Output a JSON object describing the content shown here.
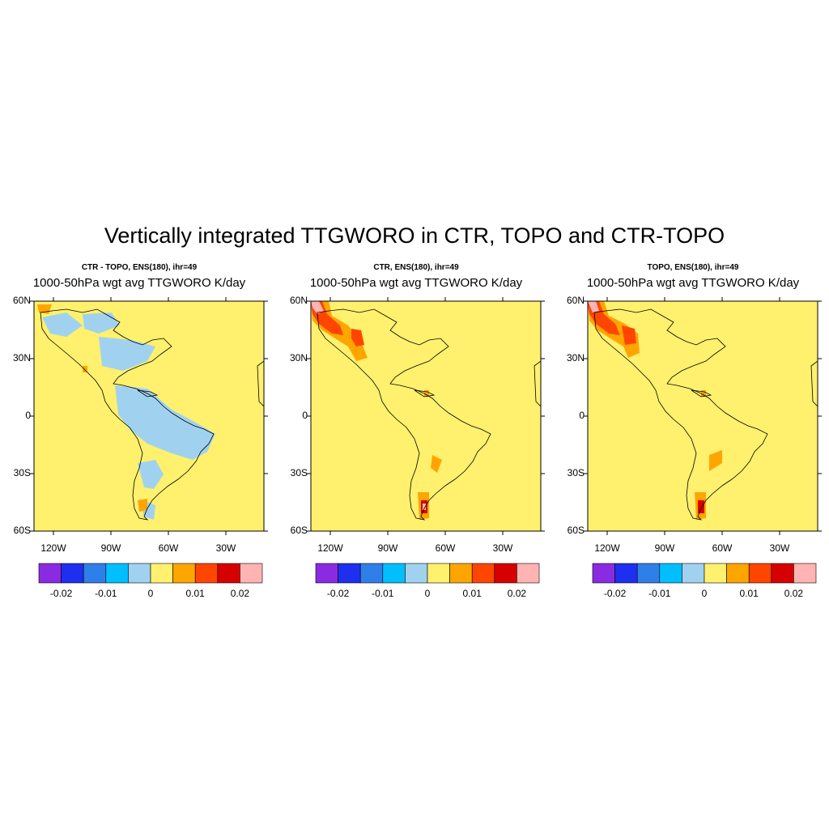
{
  "title": "Vertically integrated TTGWORO in CTR, TOPO and CTR-TOPO",
  "colors": {
    "levels": [
      "#8a2be2",
      "#1e2ff0",
      "#2f7fe8",
      "#00bfff",
      "#a0d2f0",
      "#fff06e",
      "#ffa500",
      "#ff4500",
      "#d70000",
      "#ffb3b3"
    ],
    "land_outline": "#000000",
    "background_field": "#fff06e"
  },
  "lat_ticks": [
    "60N",
    "30N",
    "0",
    "30S",
    "60S"
  ],
  "lon_ticks": [
    "120W",
    "90W",
    "60W",
    "30W"
  ],
  "colorbar_labels": [
    "-0.02",
    "-0.01",
    "0",
    "0.01",
    "0.02"
  ],
  "panels": [
    {
      "subtitle": "CTR - TOPO, ENS(180), ihr=49",
      "variable_title": "1000-50hPa wgt avg TTGWORO K/day"
    },
    {
      "subtitle": "CTR, ENS(180), ihr=49",
      "variable_title": "1000-50hPa wgt avg TTGWORO K/day"
    },
    {
      "subtitle": "TOPO, ENS(180), ihr=49",
      "variable_title": "1000-50hPa wgt avg TTGWORO K/day"
    }
  ]
}
